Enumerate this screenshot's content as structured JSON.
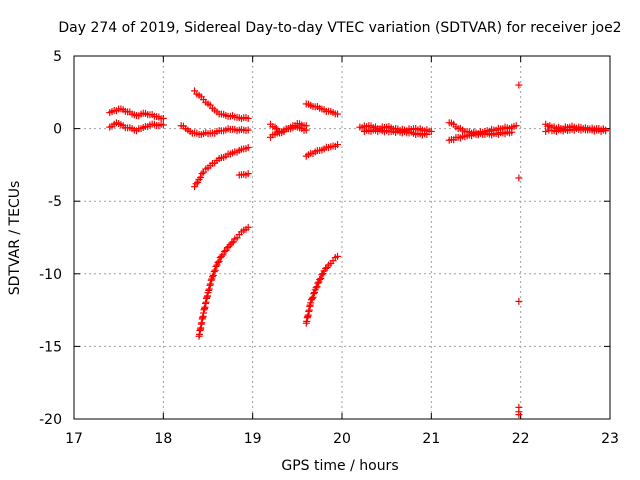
{
  "chart_data": {
    "type": "scatter",
    "title": "Day 274 of 2019, Sidereal Day-to-day VTEC variation (SDTVAR) for receiver joe2",
    "xlabel": "GPS time / hours",
    "ylabel": "SDTVAR / TECUs",
    "xlim": [
      17,
      23
    ],
    "ylim": [
      -20,
      5
    ],
    "xticks": [
      17,
      18,
      19,
      20,
      21,
      22,
      23
    ],
    "yticks": [
      5,
      0,
      -5,
      -10,
      -15,
      -20
    ],
    "xtick_labels": [
      "17",
      "18",
      "19",
      "20",
      "21",
      "22",
      "23"
    ],
    "ytick_labels": [
      "5",
      "0",
      "-5",
      "-10",
      "-15",
      "-20"
    ],
    "grid": true,
    "legend": "none",
    "marker": "plus",
    "color": "#ff0000",
    "series": [
      {
        "name": "arc-17a-upper",
        "x": [
          17.4,
          17.45,
          17.5,
          17.55,
          17.6,
          17.65,
          17.7,
          17.75,
          17.8,
          17.85,
          17.9,
          17.95,
          18.0
        ],
        "y": [
          1.1,
          1.25,
          1.35,
          1.3,
          1.15,
          1.0,
          0.9,
          1.0,
          1.05,
          0.95,
          0.85,
          0.8,
          0.7
        ]
      },
      {
        "name": "arc-17a-lower",
        "x": [
          17.4,
          17.45,
          17.5,
          17.55,
          17.6,
          17.65,
          17.7,
          17.75,
          17.8,
          17.85,
          17.9,
          17.95,
          18.0
        ],
        "y": [
          0.1,
          0.3,
          0.35,
          0.2,
          0.05,
          0.0,
          -0.15,
          0.0,
          0.15,
          0.25,
          0.3,
          0.2,
          0.25
        ]
      },
      {
        "name": "arc-18-upper",
        "x": [
          18.35,
          18.4,
          18.45,
          18.5,
          18.55,
          18.6,
          18.65,
          18.7,
          18.75,
          18.8,
          18.85,
          18.9,
          18.95
        ],
        "y": [
          2.6,
          2.3,
          2.0,
          1.7,
          1.4,
          1.15,
          1.0,
          0.9,
          0.85,
          0.8,
          0.75,
          0.75,
          0.7
        ]
      },
      {
        "name": "arc-18-mid",
        "x": [
          18.2,
          18.25,
          18.3,
          18.35,
          18.4,
          18.45,
          18.5,
          18.55,
          18.6,
          18.65,
          18.7,
          18.75,
          18.8,
          18.85,
          18.9,
          18.95
        ],
        "y": [
          0.2,
          0.0,
          -0.2,
          -0.3,
          -0.4,
          -0.35,
          -0.35,
          -0.3,
          -0.2,
          -0.15,
          -0.1,
          -0.05,
          -0.05,
          -0.1,
          -0.1,
          -0.1
        ]
      },
      {
        "name": "arc-18-neg",
        "x": [
          18.35,
          18.4,
          18.45,
          18.5,
          18.55,
          18.6,
          18.65,
          18.7,
          18.75,
          18.8,
          18.85,
          18.9,
          18.95
        ],
        "y": [
          -4.0,
          -3.5,
          -3.0,
          -2.7,
          -2.4,
          -2.2,
          -2.0,
          -1.9,
          -1.75,
          -1.6,
          -1.5,
          -1.4,
          -1.3
        ]
      },
      {
        "name": "arc-18-short",
        "x": [
          18.85,
          18.9,
          18.95
        ],
        "y": [
          -3.2,
          -3.15,
          -3.1
        ]
      },
      {
        "name": "arc-18-deep",
        "x": [
          18.4,
          18.45,
          18.5,
          18.55,
          18.6,
          18.65,
          18.7,
          18.75,
          18.8,
          18.85,
          18.9,
          18.95
        ],
        "y": [
          -14.3,
          -12.7,
          -11.3,
          -10.2,
          -9.4,
          -8.8,
          -8.4,
          -8.0,
          -7.6,
          -7.3,
          -7.0,
          -6.8
        ]
      },
      {
        "name": "arc-19a",
        "x": [
          19.2,
          19.25,
          19.3,
          19.35,
          19.4,
          19.45,
          19.5,
          19.55,
          19.6
        ],
        "y": [
          0.3,
          0.1,
          -0.3,
          -0.2,
          0.0,
          0.2,
          0.35,
          0.25,
          0.2
        ]
      },
      {
        "name": "arc-19a-low",
        "x": [
          19.2,
          19.25,
          19.3,
          19.35,
          19.4,
          19.45,
          19.5,
          19.55,
          19.6
        ],
        "y": [
          -0.6,
          -0.4,
          -0.2,
          -0.1,
          0.0,
          0.05,
          0.1,
          0.0,
          -0.1
        ]
      },
      {
        "name": "arc-19b-upper",
        "x": [
          19.6,
          19.65,
          19.7,
          19.75,
          19.8,
          19.85,
          19.9,
          19.95
        ],
        "y": [
          1.7,
          1.6,
          1.5,
          1.4,
          1.3,
          1.2,
          1.1,
          1.0
        ]
      },
      {
        "name": "arc-19b-neg",
        "x": [
          19.6,
          19.65,
          19.7,
          19.75,
          19.8,
          19.85,
          19.9,
          19.95
        ],
        "y": [
          -1.9,
          -1.7,
          -1.6,
          -1.5,
          -1.4,
          -1.3,
          -1.2,
          -1.1
        ]
      },
      {
        "name": "arc-19b-deep",
        "x": [
          19.6,
          19.65,
          19.7,
          19.75,
          19.8,
          19.85,
          19.9,
          19.95
        ],
        "y": [
          -13.4,
          -12.0,
          -11.1,
          -10.4,
          -9.8,
          -9.4,
          -9.1,
          -8.8
        ]
      },
      {
        "name": "arc-20",
        "x": [
          20.2,
          20.3,
          20.4,
          20.5,
          20.6,
          20.7,
          20.8,
          20.9,
          21.0
        ],
        "y": [
          0.1,
          0.2,
          0.0,
          0.1,
          0.0,
          -0.1,
          0.0,
          -0.1,
          -0.2
        ]
      },
      {
        "name": "arc-20-low",
        "x": [
          20.25,
          20.35,
          20.45,
          20.55,
          20.65,
          20.75,
          20.85,
          20.95
        ],
        "y": [
          -0.2,
          -0.1,
          -0.15,
          -0.2,
          -0.25,
          -0.3,
          -0.35,
          -0.4
        ]
      },
      {
        "name": "arc-21",
        "x": [
          21.2,
          21.25,
          21.3,
          21.4,
          21.5,
          21.6,
          21.7,
          21.8,
          21.9,
          21.95
        ],
        "y": [
          0.4,
          0.3,
          0.0,
          -0.2,
          -0.3,
          -0.2,
          -0.1,
          0.0,
          0.1,
          0.2
        ]
      },
      {
        "name": "arc-21-low",
        "x": [
          21.2,
          21.3,
          21.4,
          21.5,
          21.6,
          21.7,
          21.8,
          21.9
        ],
        "y": [
          -0.8,
          -0.6,
          -0.5,
          -0.4,
          -0.4,
          -0.35,
          -0.3,
          -0.25
        ]
      },
      {
        "name": "col-22",
        "x": [
          21.98,
          21.98,
          21.98,
          21.98,
          21.98,
          21.98
        ],
        "y": [
          3.0,
          -3.4,
          -11.9,
          -19.2,
          -19.5,
          -19.7
        ]
      },
      {
        "name": "arc-22",
        "x": [
          22.28,
          22.35,
          22.45,
          22.55,
          22.65,
          22.75,
          22.85,
          22.95
        ],
        "y": [
          0.3,
          0.1,
          0.0,
          0.1,
          0.1,
          0.0,
          0.0,
          -0.1
        ]
      },
      {
        "name": "arc-22-low",
        "x": [
          22.28,
          22.35,
          22.45,
          22.55,
          22.65,
          22.75,
          22.85,
          22.95
        ],
        "y": [
          -0.2,
          -0.15,
          -0.1,
          -0.1,
          -0.05,
          -0.1,
          -0.1,
          -0.15
        ]
      }
    ]
  }
}
